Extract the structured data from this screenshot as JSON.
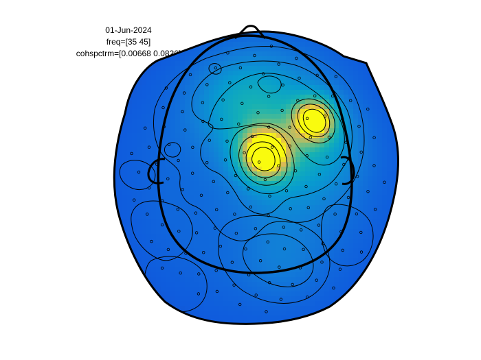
{
  "chart_data": {
    "type": "heatmap",
    "subtype": "topoplot",
    "title_lines": [
      "01-Jun-2024",
      "freq=[35 45]",
      "cohspctrm=[0.00668 0.0826]"
    ],
    "date": "01-Jun-2024",
    "freq": [
      35,
      45
    ],
    "clim": [
      0.00668,
      0.0826
    ],
    "colormap": "parula",
    "grid": false,
    "legend": "none",
    "peaks": [
      {
        "label": "central-left",
        "value": 0.082
      },
      {
        "label": "frontal-right",
        "value": 0.078
      }
    ],
    "electrode_count": 150
  }
}
